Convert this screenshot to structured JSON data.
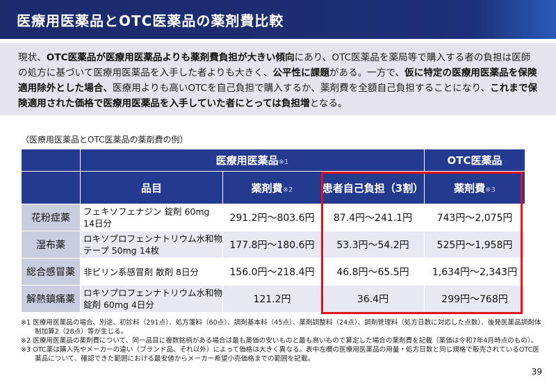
{
  "title": "医療用医薬品とOTC医薬品の薬剤費比較",
  "intro": [
    {
      "t": "現状、",
      "b": false
    },
    {
      "t": "OTC医薬品が医療用医薬品よりも薬剤費負担が大きい傾向",
      "b": true
    },
    {
      "t": "にあり、OTC医薬品を薬局等で購入する者の負担は医師の処方に基づいて医療用医薬品を入手した者よりも大きく、",
      "b": false
    },
    {
      "t": "公平性に課題",
      "b": true
    },
    {
      "t": "がある。一方で、",
      "b": false
    },
    {
      "t": "仮に特定の医療用医薬品を保険適用除外とした場合、",
      "b": true
    },
    {
      "t": "医療用よりも高いOTCを自己負担で購入するか、薬剤費を全額自己負担することになり、",
      "b": false
    },
    {
      "t": "これまで保険適用された価格で医療用医薬品を入手していた者にとっては負担増",
      "b": true
    },
    {
      "t": "となる。",
      "b": false
    }
  ],
  "caption": "（医療用医薬品とOTC医薬品の薬剤費の例）",
  "table": {
    "group_rx": "医療用医薬品",
    "group_rx_note": "※1",
    "group_otc": "OTC医薬品",
    "h_item": "品目",
    "h_cost": "薬剤費",
    "h_cost_note": "※2",
    "h_patient": "患者自己負担（3割）",
    "h_otc_cost": "薬剤費",
    "h_otc_note": "※3",
    "rows": [
      {
        "category": "花粉症薬",
        "drug": "フェキソフェナジン 錠剤 60mg 14日分",
        "cost": "291.2円～803.6円",
        "patient": "87.4円～241.1円",
        "otc": "743円～2,075円"
      },
      {
        "category": "湿布薬",
        "drug": "ロキソプロフェンナトリウム水和物テープ 50mg 14枚",
        "cost": "177.8円～180.6円",
        "patient": "53.3円～54.2円",
        "otc": "525円～1,958円"
      },
      {
        "category": "総合感冒薬",
        "drug": "非ピリン系感冒剤 散剤 8日分",
        "cost": "156.0円～218.4円",
        "patient": "46.8円～65.5円",
        "otc": "1,634円～2,343円"
      },
      {
        "category": "解熱鎮痛薬",
        "drug": "ロキソプロフェンナトリウム水和物錠剤 60mg 4日分",
        "cost": "121.2円",
        "patient": "36.4円",
        "otc": "299円～768円"
      }
    ]
  },
  "notes": [
    "※1 医療用医薬品の場合、別途、初診料（291点）、処方箋料（60点）、調剤基本料（45点）、薬剤調整料（24点）、調剤管理料（処方日数に対応した点数）、後発医薬品調剤体制加算2（28点）等が生じる。",
    "※2 医療用医薬品の薬剤費について、同一品目に複数銘柄がある場合は最も薬価の安いものと最も高いもので算定した場合の薬剤費を記載（薬価は令和7年4月時点のもの）。",
    "※3 OTC薬は購入先やメーカーの違い（ブランド品、それ以外）によって価格は大きく異なる。表中左欄の医療用医薬品の用量・処方日数と同じ規格で販売されているOTC医薬品について、確認できた範囲における最安値からメーカー希望小売価格までの範囲を記載。"
  ],
  "page_number": "39"
}
